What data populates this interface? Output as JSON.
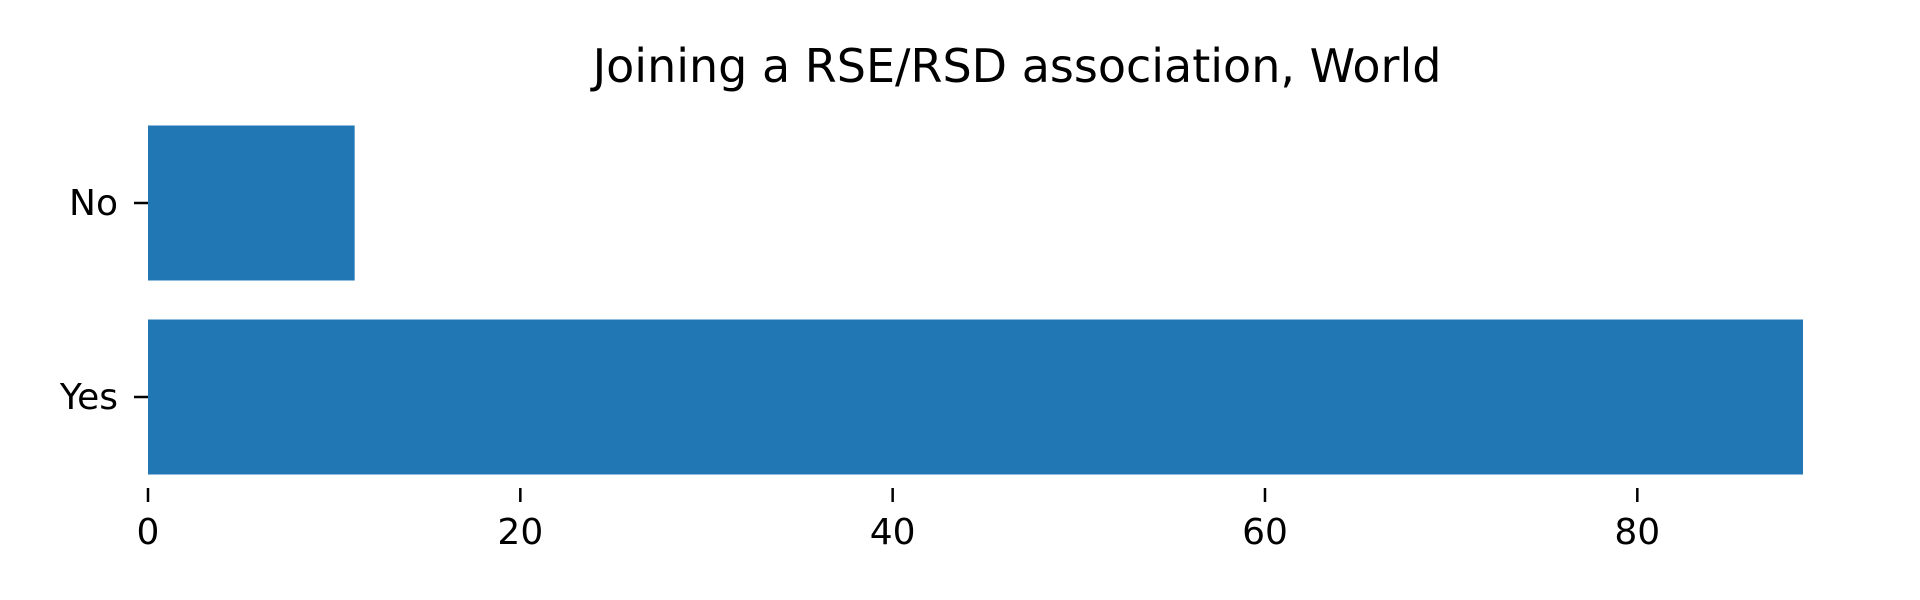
{
  "chart_data": {
    "type": "bar",
    "orientation": "horizontal",
    "title": "Joining a RSE/RSD association, World",
    "categories": [
      "No",
      "Yes"
    ],
    "values": [
      11.1,
      88.9
    ],
    "xlim": [
      0,
      88.9
    ],
    "xticks": [
      0,
      20,
      40,
      60,
      80
    ],
    "xlabel": "",
    "ylabel": "",
    "grid": false,
    "legend": "none",
    "colors": {
      "bar": "#2077b4",
      "text": "#000000",
      "background": "#ffffff"
    }
  }
}
